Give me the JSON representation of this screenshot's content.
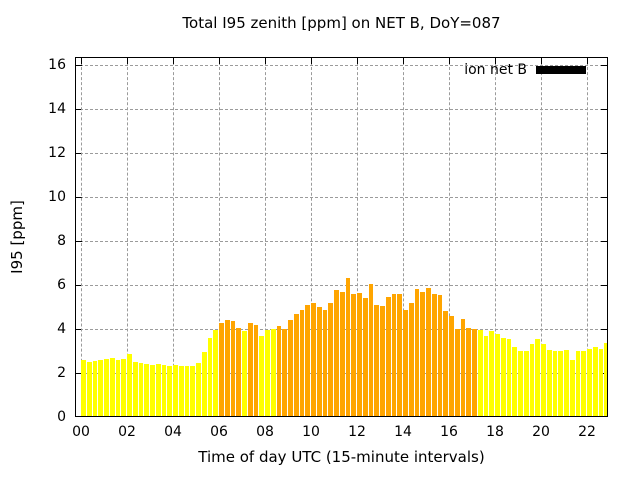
{
  "title": "Total I95 zenith [ppm] on NET B, DoY=087",
  "chart_data": {
    "type": "bar",
    "title": "Total I95 zenith [ppm] on NET B, DoY=087",
    "xlabel": "Time of day UTC (15-minute intervals)",
    "ylabel": "I95 [ppm]",
    "ylim": [
      0,
      16.4
    ],
    "xlim_hours": [
      -0.26,
      22.9
    ],
    "yticks": [
      0,
      2,
      4,
      6,
      8,
      10,
      12,
      14,
      16
    ],
    "xticks": [
      "00",
      "02",
      "04",
      "06",
      "08",
      "10",
      "12",
      "14",
      "16",
      "18",
      "20",
      "22"
    ],
    "grid": true,
    "legend": {
      "label": "ion net B",
      "swatch_color": "#000000",
      "position": "top-right-inside"
    },
    "bar_interval_minutes": 15,
    "colors": {
      "y": "#ffff00",
      "o": "#ffa500"
    },
    "bars": [
      {
        "t": "00:00",
        "v": 2.6,
        "c": "y"
      },
      {
        "t": "00:15",
        "v": 2.5,
        "c": "y"
      },
      {
        "t": "00:30",
        "v": 2.55,
        "c": "y"
      },
      {
        "t": "00:45",
        "v": 2.6,
        "c": "y"
      },
      {
        "t": "01:00",
        "v": 2.65,
        "c": "y"
      },
      {
        "t": "01:15",
        "v": 2.7,
        "c": "y"
      },
      {
        "t": "01:30",
        "v": 2.6,
        "c": "y"
      },
      {
        "t": "01:45",
        "v": 2.65,
        "c": "y"
      },
      {
        "t": "02:00",
        "v": 2.85,
        "c": "y"
      },
      {
        "t": "02:15",
        "v": 2.5,
        "c": "y"
      },
      {
        "t": "02:30",
        "v": 2.45,
        "c": "y"
      },
      {
        "t": "02:45",
        "v": 2.4,
        "c": "y"
      },
      {
        "t": "03:00",
        "v": 2.35,
        "c": "y"
      },
      {
        "t": "03:15",
        "v": 2.4,
        "c": "y"
      },
      {
        "t": "03:30",
        "v": 2.35,
        "c": "y"
      },
      {
        "t": "03:45",
        "v": 2.3,
        "c": "y"
      },
      {
        "t": "04:00",
        "v": 2.35,
        "c": "y"
      },
      {
        "t": "04:15",
        "v": 2.3,
        "c": "y"
      },
      {
        "t": "04:30",
        "v": 2.3,
        "c": "y"
      },
      {
        "t": "04:45",
        "v": 2.3,
        "c": "y"
      },
      {
        "t": "05:00",
        "v": 2.45,
        "c": "y"
      },
      {
        "t": "05:15",
        "v": 2.95,
        "c": "y"
      },
      {
        "t": "05:30",
        "v": 3.6,
        "c": "y"
      },
      {
        "t": "05:45",
        "v": 3.95,
        "c": "y"
      },
      {
        "t": "06:00",
        "v": 4.25,
        "c": "o"
      },
      {
        "t": "06:15",
        "v": 4.4,
        "c": "o"
      },
      {
        "t": "06:30",
        "v": 4.35,
        "c": "o"
      },
      {
        "t": "06:45",
        "v": 4.05,
        "c": "o"
      },
      {
        "t": "07:00",
        "v": 3.9,
        "c": "y"
      },
      {
        "t": "07:15",
        "v": 4.25,
        "c": "o"
      },
      {
        "t": "07:30",
        "v": 4.2,
        "c": "o"
      },
      {
        "t": "07:45",
        "v": 3.7,
        "c": "y"
      },
      {
        "t": "08:00",
        "v": 3.95,
        "c": "y"
      },
      {
        "t": "08:15",
        "v": 4.0,
        "c": "y"
      },
      {
        "t": "08:30",
        "v": 4.15,
        "c": "o"
      },
      {
        "t": "08:45",
        "v": 4.0,
        "c": "o"
      },
      {
        "t": "09:00",
        "v": 4.4,
        "c": "o"
      },
      {
        "t": "09:15",
        "v": 4.7,
        "c": "o"
      },
      {
        "t": "09:30",
        "v": 4.85,
        "c": "o"
      },
      {
        "t": "09:45",
        "v": 5.1,
        "c": "o"
      },
      {
        "t": "10:00",
        "v": 5.2,
        "c": "o"
      },
      {
        "t": "10:15",
        "v": 5.0,
        "c": "o"
      },
      {
        "t": "10:30",
        "v": 4.85,
        "c": "o"
      },
      {
        "t": "10:45",
        "v": 5.2,
        "c": "o"
      },
      {
        "t": "11:00",
        "v": 5.75,
        "c": "o"
      },
      {
        "t": "11:15",
        "v": 5.7,
        "c": "o"
      },
      {
        "t": "11:30",
        "v": 6.3,
        "c": "o"
      },
      {
        "t": "11:45",
        "v": 5.6,
        "c": "o"
      },
      {
        "t": "12:00",
        "v": 5.65,
        "c": "o"
      },
      {
        "t": "12:15",
        "v": 5.4,
        "c": "o"
      },
      {
        "t": "12:30",
        "v": 6.05,
        "c": "o"
      },
      {
        "t": "12:45",
        "v": 5.1,
        "c": "o"
      },
      {
        "t": "13:00",
        "v": 5.05,
        "c": "o"
      },
      {
        "t": "13:15",
        "v": 5.45,
        "c": "o"
      },
      {
        "t": "13:30",
        "v": 5.6,
        "c": "o"
      },
      {
        "t": "13:45",
        "v": 5.6,
        "c": "o"
      },
      {
        "t": "14:00",
        "v": 4.85,
        "c": "o"
      },
      {
        "t": "14:15",
        "v": 5.2,
        "c": "o"
      },
      {
        "t": "14:30",
        "v": 5.8,
        "c": "o"
      },
      {
        "t": "14:45",
        "v": 5.7,
        "c": "o"
      },
      {
        "t": "15:00",
        "v": 5.85,
        "c": "o"
      },
      {
        "t": "15:15",
        "v": 5.6,
        "c": "o"
      },
      {
        "t": "15:30",
        "v": 5.55,
        "c": "o"
      },
      {
        "t": "15:45",
        "v": 4.8,
        "c": "o"
      },
      {
        "t": "16:00",
        "v": 4.6,
        "c": "o"
      },
      {
        "t": "16:15",
        "v": 4.0,
        "c": "o"
      },
      {
        "t": "16:30",
        "v": 4.45,
        "c": "o"
      },
      {
        "t": "16:45",
        "v": 4.05,
        "c": "o"
      },
      {
        "t": "17:00",
        "v": 4.0,
        "c": "o"
      },
      {
        "t": "17:15",
        "v": 3.95,
        "c": "y"
      },
      {
        "t": "17:30",
        "v": 3.7,
        "c": "y"
      },
      {
        "t": "17:45",
        "v": 3.9,
        "c": "y"
      },
      {
        "t": "18:00",
        "v": 3.75,
        "c": "y"
      },
      {
        "t": "18:15",
        "v": 3.6,
        "c": "y"
      },
      {
        "t": "18:30",
        "v": 3.55,
        "c": "y"
      },
      {
        "t": "18:45",
        "v": 3.2,
        "c": "y"
      },
      {
        "t": "19:00",
        "v": 3.0,
        "c": "y"
      },
      {
        "t": "19:15",
        "v": 3.0,
        "c": "y"
      },
      {
        "t": "19:30",
        "v": 3.3,
        "c": "y"
      },
      {
        "t": "19:45",
        "v": 3.55,
        "c": "y"
      },
      {
        "t": "20:00",
        "v": 3.3,
        "c": "y"
      },
      {
        "t": "20:15",
        "v": 3.05,
        "c": "y"
      },
      {
        "t": "20:30",
        "v": 3.0,
        "c": "y"
      },
      {
        "t": "20:45",
        "v": 3.0,
        "c": "y"
      },
      {
        "t": "21:00",
        "v": 3.05,
        "c": "y"
      },
      {
        "t": "21:15",
        "v": 2.6,
        "c": "y"
      },
      {
        "t": "21:30",
        "v": 3.0,
        "c": "y"
      },
      {
        "t": "21:45",
        "v": 3.0,
        "c": "y"
      },
      {
        "t": "22:00",
        "v": 3.1,
        "c": "y"
      },
      {
        "t": "22:15",
        "v": 3.2,
        "c": "y"
      },
      {
        "t": "22:30",
        "v": 3.1,
        "c": "y"
      },
      {
        "t": "22:45",
        "v": 3.35,
        "c": "y"
      }
    ]
  }
}
